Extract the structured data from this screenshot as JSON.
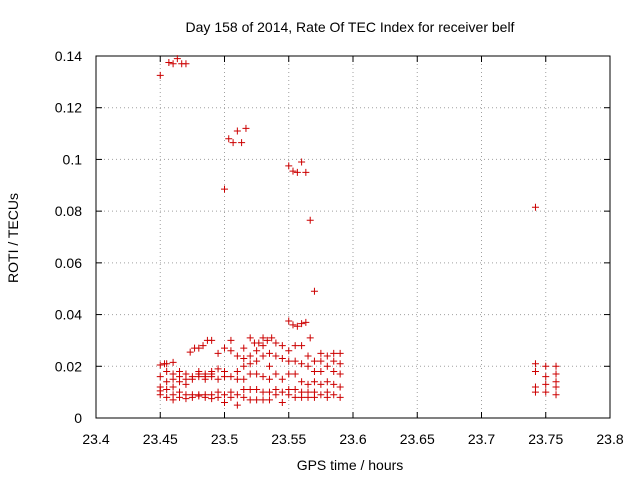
{
  "chart_data": {
    "type": "scatter",
    "title": "Day 158 of 2014, Rate Of TEC Index for receiver belf",
    "xlabel": "GPS time / hours",
    "ylabel": "ROTI / TECUs",
    "xlim": [
      23.4,
      23.8
    ],
    "ylim": [
      0,
      0.14
    ],
    "xticks": [
      "23.4",
      "23.45",
      "23.5",
      "23.55",
      "23.6",
      "23.65",
      "23.7",
      "23.75",
      "23.8"
    ],
    "xtick_values": [
      23.4,
      23.45,
      23.5,
      23.55,
      23.6,
      23.65,
      23.7,
      23.75,
      23.8
    ],
    "yticks": [
      "0",
      "0.02",
      "0.04",
      "0.06",
      "0.08",
      "0.1",
      "0.12",
      "0.14"
    ],
    "ytick_values": [
      0,
      0.02,
      0.04,
      0.06,
      0.08,
      0.1,
      0.12,
      0.14
    ],
    "grid": true,
    "marker": "+",
    "colors": {
      "marker": "#cc0000",
      "grid": "#a0a0a0",
      "axis": "#000000"
    },
    "series": [
      {
        "name": "ROTI",
        "points": [
          [
            23.45,
            0.1325
          ],
          [
            23.4533,
            0.021
          ],
          [
            23.4567,
            0.1375
          ],
          [
            23.46,
            0.137
          ],
          [
            23.4633,
            0.139
          ],
          [
            23.4667,
            0.137
          ],
          [
            23.47,
            0.137
          ],
          [
            23.4733,
            0.0255
          ],
          [
            23.4767,
            0.027
          ],
          [
            23.48,
            0.027
          ],
          [
            23.4833,
            0.028
          ],
          [
            23.4867,
            0.03
          ],
          [
            23.49,
            0.03
          ],
          [
            23.5,
            0.0885
          ],
          [
            23.5033,
            0.108
          ],
          [
            23.5067,
            0.1065
          ],
          [
            23.51,
            0.111
          ],
          [
            23.5133,
            0.1065
          ],
          [
            23.5167,
            0.112
          ],
          [
            23.52,
            0.031
          ],
          [
            23.5233,
            0.029
          ],
          [
            23.5267,
            0.029
          ],
          [
            23.53,
            0.031
          ],
          [
            23.5333,
            0.03
          ],
          [
            23.5367,
            0.031
          ],
          [
            23.55,
            0.0975
          ],
          [
            23.5533,
            0.0955
          ],
          [
            23.5567,
            0.095
          ],
          [
            23.56,
            0.099
          ],
          [
            23.5633,
            0.095
          ],
          [
            23.5667,
            0.0765
          ],
          [
            23.57,
            0.049
          ],
          [
            23.55,
            0.0375
          ],
          [
            23.5533,
            0.036
          ],
          [
            23.5567,
            0.0355
          ],
          [
            23.56,
            0.0365
          ],
          [
            23.5633,
            0.037
          ],
          [
            23.5667,
            0.031
          ],
          [
            23.45,
            0.0205
          ],
          [
            23.45,
            0.016
          ],
          [
            23.45,
            0.012
          ],
          [
            23.45,
            0.0105
          ],
          [
            23.45,
            0.009
          ],
          [
            23.455,
            0.021
          ],
          [
            23.455,
            0.018
          ],
          [
            23.455,
            0.014
          ],
          [
            23.455,
            0.011
          ],
          [
            23.455,
            0.008
          ],
          [
            23.46,
            0.0215
          ],
          [
            23.46,
            0.017
          ],
          [
            23.46,
            0.015
          ],
          [
            23.46,
            0.012
          ],
          [
            23.46,
            0.009
          ],
          [
            23.46,
            0.007
          ],
          [
            23.465,
            0.018
          ],
          [
            23.465,
            0.016
          ],
          [
            23.465,
            0.014
          ],
          [
            23.465,
            0.01
          ],
          [
            23.465,
            0.008
          ],
          [
            23.47,
            0.017
          ],
          [
            23.47,
            0.015
          ],
          [
            23.47,
            0.013
          ],
          [
            23.47,
            0.009
          ],
          [
            23.47,
            0.0075
          ],
          [
            23.475,
            0.016
          ],
          [
            23.475,
            0.015
          ],
          [
            23.475,
            0.009
          ],
          [
            23.475,
            0.008
          ],
          [
            23.48,
            0.018
          ],
          [
            23.48,
            0.017
          ],
          [
            23.48,
            0.016
          ],
          [
            23.48,
            0.009
          ],
          [
            23.48,
            0.0085
          ],
          [
            23.485,
            0.017
          ],
          [
            23.485,
            0.016
          ],
          [
            23.485,
            0.015
          ],
          [
            23.485,
            0.009
          ],
          [
            23.485,
            0.008
          ],
          [
            23.49,
            0.018
          ],
          [
            23.49,
            0.017
          ],
          [
            23.49,
            0.016
          ],
          [
            23.49,
            0.009
          ],
          [
            23.49,
            0.0075
          ],
          [
            23.495,
            0.025
          ],
          [
            23.495,
            0.019
          ],
          [
            23.495,
            0.015
          ],
          [
            23.495,
            0.01
          ],
          [
            23.495,
            0.008
          ],
          [
            23.5,
            0.027
          ],
          [
            23.5,
            0.018
          ],
          [
            23.5,
            0.016
          ],
          [
            23.5,
            0.009
          ],
          [
            23.5,
            0.006
          ],
          [
            23.505,
            0.03
          ],
          [
            23.505,
            0.026
          ],
          [
            23.505,
            0.016
          ],
          [
            23.505,
            0.01
          ],
          [
            23.505,
            0.008
          ],
          [
            23.51,
            0.024
          ],
          [
            23.51,
            0.018
          ],
          [
            23.51,
            0.015
          ],
          [
            23.51,
            0.009
          ],
          [
            23.51,
            0.005
          ],
          [
            23.515,
            0.027
          ],
          [
            23.515,
            0.023
          ],
          [
            23.515,
            0.02
          ],
          [
            23.515,
            0.015
          ],
          [
            23.515,
            0.011
          ],
          [
            23.515,
            0.008
          ],
          [
            23.52,
            0.024
          ],
          [
            23.52,
            0.021
          ],
          [
            23.52,
            0.017
          ],
          [
            23.52,
            0.011
          ],
          [
            23.52,
            0.007
          ],
          [
            23.525,
            0.026
          ],
          [
            23.525,
            0.022
          ],
          [
            23.525,
            0.017
          ],
          [
            23.525,
            0.011
          ],
          [
            23.525,
            0.007
          ],
          [
            23.53,
            0.028
          ],
          [
            23.53,
            0.024
          ],
          [
            23.53,
            0.016
          ],
          [
            23.53,
            0.01
          ],
          [
            23.53,
            0.007
          ],
          [
            23.535,
            0.025
          ],
          [
            23.535,
            0.02
          ],
          [
            23.535,
            0.015
          ],
          [
            23.535,
            0.01
          ],
          [
            23.535,
            0.007
          ],
          [
            23.54,
            0.029
          ],
          [
            23.54,
            0.024
          ],
          [
            23.54,
            0.017
          ],
          [
            23.54,
            0.011
          ],
          [
            23.54,
            0.009
          ],
          [
            23.545,
            0.028
          ],
          [
            23.545,
            0.023
          ],
          [
            23.545,
            0.015
          ],
          [
            23.545,
            0.01
          ],
          [
            23.545,
            0.006
          ],
          [
            23.55,
            0.026
          ],
          [
            23.55,
            0.022
          ],
          [
            23.55,
            0.017
          ],
          [
            23.55,
            0.011
          ],
          [
            23.55,
            0.009
          ],
          [
            23.555,
            0.028
          ],
          [
            23.555,
            0.022
          ],
          [
            23.555,
            0.017
          ],
          [
            23.555,
            0.011
          ],
          [
            23.555,
            0.008
          ],
          [
            23.56,
            0.028
          ],
          [
            23.56,
            0.021
          ],
          [
            23.56,
            0.014
          ],
          [
            23.56,
            0.01
          ],
          [
            23.56,
            0.008
          ],
          [
            23.565,
            0.024
          ],
          [
            23.565,
            0.02
          ],
          [
            23.565,
            0.013
          ],
          [
            23.565,
            0.01
          ],
          [
            23.565,
            0.008
          ],
          [
            23.57,
            0.022
          ],
          [
            23.57,
            0.018
          ],
          [
            23.57,
            0.014
          ],
          [
            23.57,
            0.01
          ],
          [
            23.57,
            0.008
          ],
          [
            23.575,
            0.025
          ],
          [
            23.575,
            0.022
          ],
          [
            23.575,
            0.018
          ],
          [
            23.575,
            0.013
          ],
          [
            23.575,
            0.009
          ],
          [
            23.58,
            0.024
          ],
          [
            23.58,
            0.02
          ],
          [
            23.58,
            0.014
          ],
          [
            23.58,
            0.01
          ],
          [
            23.58,
            0.008
          ],
          [
            23.585,
            0.025
          ],
          [
            23.585,
            0.022
          ],
          [
            23.585,
            0.018
          ],
          [
            23.585,
            0.013
          ],
          [
            23.585,
            0.009
          ],
          [
            23.59,
            0.025
          ],
          [
            23.59,
            0.021
          ],
          [
            23.59,
            0.017
          ],
          [
            23.59,
            0.012
          ],
          [
            23.59,
            0.008
          ],
          [
            23.742,
            0.0815
          ],
          [
            23.742,
            0.021
          ],
          [
            23.742,
            0.018
          ],
          [
            23.742,
            0.012
          ],
          [
            23.742,
            0.01
          ],
          [
            23.75,
            0.02
          ],
          [
            23.75,
            0.016
          ],
          [
            23.75,
            0.013
          ],
          [
            23.75,
            0.01
          ],
          [
            23.758,
            0.02
          ],
          [
            23.758,
            0.017
          ],
          [
            23.758,
            0.014
          ],
          [
            23.758,
            0.012
          ],
          [
            23.758,
            0.009
          ]
        ]
      }
    ]
  }
}
